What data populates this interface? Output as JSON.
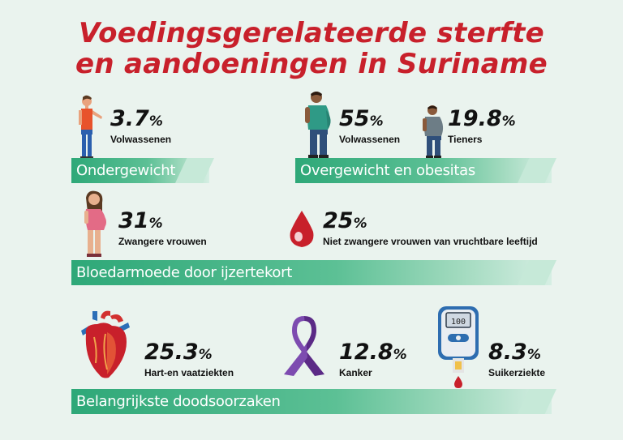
{
  "title": {
    "line1": "Voedingsgerelateerde sterfte",
    "line2": "en aandoeningen in Suriname"
  },
  "sections": {
    "underweight": {
      "band_label": "Ondergewicht",
      "stat": {
        "value": "3.7",
        "unit": "%",
        "caption": "Volwassenen"
      }
    },
    "overweight": {
      "band_label": "Overgewicht en obesitas",
      "adults": {
        "value": "55",
        "unit": "%",
        "caption": "Volwassenen"
      },
      "teens": {
        "value": "19.8",
        "unit": "%",
        "caption": "Tieners"
      }
    },
    "anemia": {
      "band_label": "Bloedarmoede door ijzertekort",
      "pregnant": {
        "value": "31",
        "unit": "%",
        "caption": "Zwangere vrouwen"
      },
      "non_pregnant": {
        "value": "25",
        "unit": "%",
        "caption": "Niet zwangere vrouwen van vruchtbare leeftijd"
      }
    },
    "causes_of_death": {
      "band_label": "Belangrijkste doodsoorzaken",
      "heart": {
        "value": "25.3",
        "unit": "%",
        "caption": "Hart-en vaatziekten"
      },
      "cancer": {
        "value": "12.8",
        "unit": "%",
        "caption": "Kanker"
      },
      "diabetes": {
        "value": "8.3",
        "unit": "%",
        "caption": "Suikerziekte",
        "meter_reading": "100"
      }
    }
  },
  "icons": {
    "thin_man": "thin-man-icon",
    "obese_man": "obese-man-icon",
    "obese_teen": "obese-teen-icon",
    "pregnant_woman": "pregnant-woman-icon",
    "blood_drop": "blood-drop-icon",
    "heart": "heart-icon",
    "ribbon": "awareness-ribbon-icon",
    "glucose_meter": "glucose-meter-icon"
  },
  "colors": {
    "title": "#c8202b",
    "band": "#2ea878",
    "background": "#eaf3ee"
  }
}
